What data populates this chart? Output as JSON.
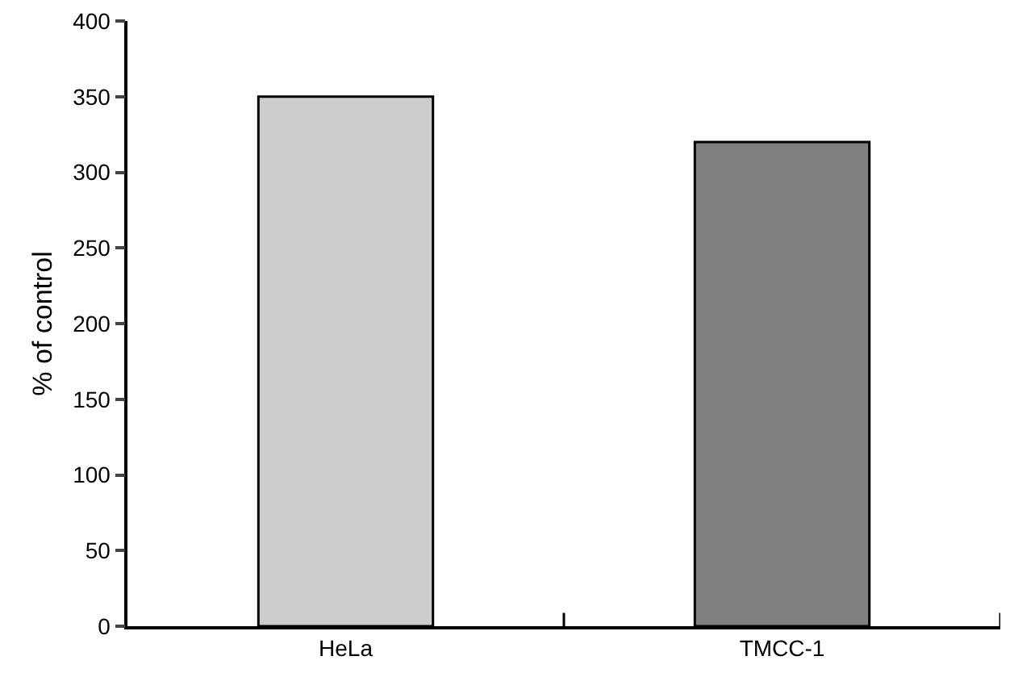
{
  "chart_data": {
    "type": "bar",
    "ylabel": "% of control",
    "categories": [
      "HeLa",
      "TMCC-1"
    ],
    "values": [
      350,
      320
    ],
    "colors": [
      "#cccccc",
      "#808080"
    ],
    "ylim": [
      0,
      400
    ],
    "yticks": [
      0,
      50,
      100,
      150,
      200,
      250,
      300,
      350,
      400
    ]
  }
}
